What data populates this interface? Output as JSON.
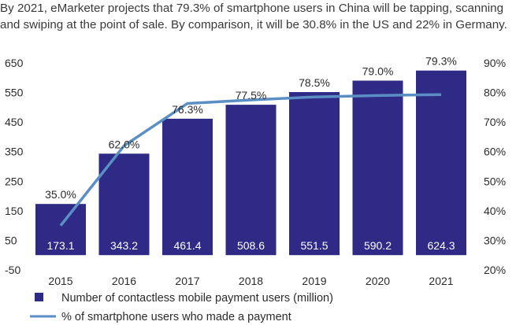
{
  "headline": {
    "line1": "By 2021, eMarketer projects that 79.3% of smartphone users in China will be tapping, scanning",
    "line2": "and swiping at the point of sale. By comparison, it will be 30.8% in the US and 22% in Germany."
  },
  "colors": {
    "bar": "#2e2a86",
    "line": "#5b8fc4",
    "bar_label": "#ffffff",
    "text": "#2b2b2b",
    "axis": "#444444"
  },
  "chart_data": {
    "type": "bar+line",
    "categories": [
      "2015",
      "2016",
      "2017",
      "2018",
      "2019",
      "2020",
      "2021"
    ],
    "series": [
      {
        "name": "Number of contactless mobile payment users (million)",
        "type": "bar",
        "axis": "left",
        "values": [
          173.1,
          343.2,
          461.4,
          508.6,
          551.5,
          590.2,
          624.3
        ],
        "labels": [
          "173.1",
          "343.2",
          "461.4",
          "508.6",
          "551.5",
          "590.2",
          "624.3"
        ]
      },
      {
        "name": "% of smartphone users who made a payment",
        "type": "line",
        "axis": "right",
        "values": [
          35.0,
          62.0,
          76.3,
          77.5,
          78.5,
          79.0,
          79.3
        ],
        "labels": [
          "35.0%",
          "62.0%",
          "76.3%",
          "77.5%",
          "78.5%",
          "79.0%",
          "79.3%"
        ]
      }
    ],
    "y_left": {
      "range": [
        -50,
        650
      ],
      "ticks": [
        650,
        550,
        450,
        350,
        250,
        150,
        50,
        -50
      ],
      "tick_labels": [
        "650",
        "550",
        "450",
        "350",
        "250",
        "150",
        "50",
        "-50"
      ]
    },
    "y_right": {
      "range": [
        20,
        90
      ],
      "ticks": [
        90,
        80,
        70,
        60,
        50,
        40,
        30,
        20
      ],
      "tick_labels": [
        "90%",
        "80%",
        "70%",
        "60%",
        "50%",
        "40%",
        "30%",
        "20%"
      ]
    },
    "grid": false,
    "legend_position": "bottom-left"
  }
}
